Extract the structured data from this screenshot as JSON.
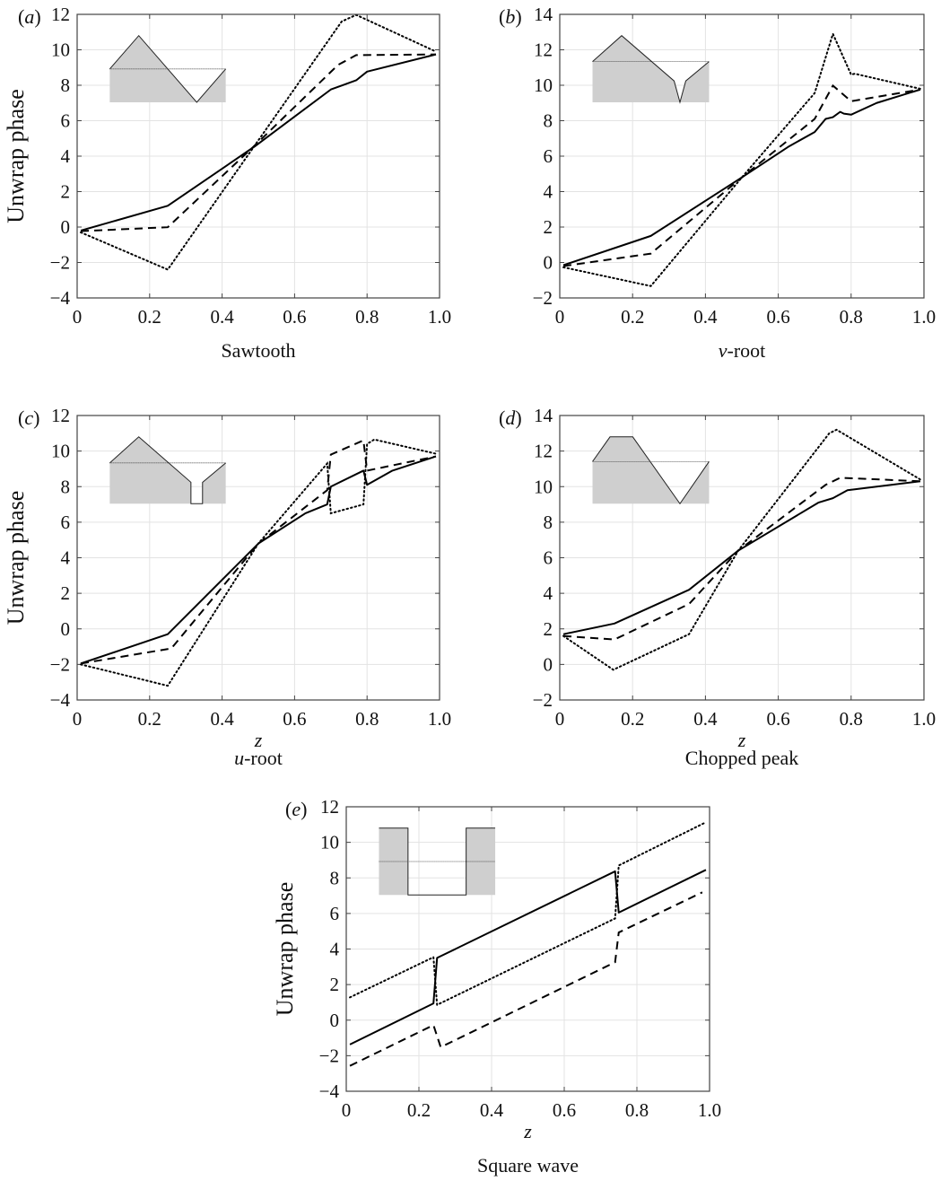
{
  "chart_data": [
    {
      "type": "line",
      "panel_label": "a",
      "caption": "Sawtooth",
      "xlabel": "",
      "ylabel": "Unwrap phase",
      "xlim": [
        0,
        1.0
      ],
      "ylim": [
        -4,
        12
      ],
      "xticks": [
        "0",
        "0.2",
        "0.4",
        "0.6",
        "0.8",
        "1.0"
      ],
      "yticks": [
        -4,
        -2,
        0,
        2,
        4,
        6,
        8,
        10,
        12
      ],
      "grid": true,
      "inset": "sawtooth",
      "series": [
        {
          "style": "solid",
          "x": [
            0.01,
            0.25,
            0.49,
            0.7,
            0.77,
            0.8,
            0.99
          ],
          "y": [
            -0.2,
            1.2,
            4.55,
            7.76,
            8.28,
            8.77,
            9.74
          ]
        },
        {
          "style": "dashed",
          "x": [
            0.01,
            0.25,
            0.49,
            0.72,
            0.77,
            0.99
          ],
          "y": [
            -0.23,
            -0.01,
            4.6,
            9.15,
            9.7,
            9.74
          ]
        },
        {
          "style": "dotted",
          "x": [
            0.01,
            0.25,
            0.49,
            0.73,
            0.77,
            0.99
          ],
          "y": [
            -0.3,
            -2.4,
            4.6,
            11.6,
            11.97,
            9.9
          ]
        }
      ]
    },
    {
      "type": "line",
      "panel_label": "b",
      "caption": "v-root",
      "xlabel": "",
      "ylabel": "",
      "xlim": [
        0,
        1.0
      ],
      "ylim": [
        -2,
        14
      ],
      "xticks": [
        "0",
        "0.2",
        "0.4",
        "0.6",
        "0.8",
        "1.0"
      ],
      "yticks": [
        -2,
        0,
        2,
        4,
        6,
        8,
        10,
        12,
        14
      ],
      "grid": true,
      "inset": "v-root",
      "series": [
        {
          "style": "solid",
          "x": [
            0.01,
            0.25,
            0.5,
            0.63,
            0.7,
            0.73,
            0.75,
            0.77,
            0.78,
            0.8,
            0.87,
            0.99
          ],
          "y": [
            -0.15,
            1.5,
            4.8,
            6.56,
            7.36,
            8.1,
            8.2,
            8.5,
            8.4,
            8.34,
            9.0,
            9.76
          ]
        },
        {
          "style": "dashed",
          "x": [
            0.01,
            0.25,
            0.5,
            0.7,
            0.75,
            0.8,
            0.99
          ],
          "y": [
            -0.2,
            0.5,
            4.8,
            8.1,
            9.98,
            9.1,
            9.76
          ]
        },
        {
          "style": "dotted",
          "x": [
            0.01,
            0.25,
            0.5,
            0.7,
            0.75,
            0.8,
            0.81,
            0.99
          ],
          "y": [
            -0.27,
            -1.33,
            4.8,
            9.56,
            12.9,
            10.6,
            10.65,
            9.8
          ]
        }
      ]
    },
    {
      "type": "line",
      "panel_label": "c",
      "caption": "u-root",
      "xlabel": "z",
      "ylabel": "Unwrap phase",
      "xlim": [
        0,
        1.0
      ],
      "ylim": [
        -4,
        12
      ],
      "xticks": [
        "0",
        "0.2",
        "0.4",
        "0.6",
        "0.8",
        "1.0"
      ],
      "yticks": [
        -4,
        -2,
        0,
        2,
        4,
        6,
        8,
        10,
        12
      ],
      "grid": true,
      "inset": "u-root",
      "series": [
        {
          "style": "solid",
          "x": [
            0.01,
            0.25,
            0.5,
            0.63,
            0.69,
            0.7,
            0.79,
            0.8,
            0.87,
            0.99
          ],
          "y": [
            -1.95,
            -0.3,
            4.8,
            6.5,
            7.0,
            8.0,
            8.9,
            8.1,
            8.9,
            9.7
          ]
        },
        {
          "style": "dashed",
          "x": [
            0.01,
            0.26,
            0.5,
            0.69,
            0.7,
            0.79,
            0.8,
            0.99
          ],
          "y": [
            -1.95,
            -1.1,
            4.8,
            7.8,
            9.8,
            10.6,
            8.9,
            9.7
          ]
        },
        {
          "style": "dotted",
          "x": [
            0.01,
            0.25,
            0.5,
            0.69,
            0.7,
            0.79,
            0.8,
            0.82,
            0.99
          ],
          "y": [
            -2.0,
            -3.2,
            4.8,
            9.3,
            6.5,
            7.0,
            10.4,
            10.65,
            9.85
          ]
        }
      ]
    },
    {
      "type": "line",
      "panel_label": "d",
      "caption": "Chopped peak",
      "xlabel": "z",
      "ylabel": "",
      "xlim": [
        0,
        1.0
      ],
      "ylim": [
        -2,
        14
      ],
      "xticks": [
        "0",
        "0.2",
        "0.4",
        "0.6",
        "0.8",
        "1.0"
      ],
      "yticks": [
        -2,
        0,
        2,
        4,
        6,
        8,
        10,
        12,
        14
      ],
      "grid": true,
      "inset": "chopped-peak",
      "series": [
        {
          "style": "solid",
          "x": [
            0.01,
            0.15,
            0.355,
            0.49,
            0.71,
            0.75,
            0.79,
            0.99
          ],
          "y": [
            1.7,
            2.3,
            4.2,
            6.4,
            9.1,
            9.35,
            9.8,
            10.3
          ]
        },
        {
          "style": "dashed",
          "x": [
            0.01,
            0.15,
            0.355,
            0.49,
            0.73,
            0.77,
            0.99
          ],
          "y": [
            1.6,
            1.4,
            3.4,
            6.4,
            10.1,
            10.5,
            10.3
          ]
        },
        {
          "style": "dotted",
          "x": [
            0.01,
            0.147,
            0.355,
            0.49,
            0.74,
            0.76,
            0.99
          ],
          "y": [
            1.6,
            -0.3,
            1.7,
            6.4,
            13.0,
            13.2,
            10.4
          ]
        }
      ]
    },
    {
      "type": "line",
      "panel_label": "e",
      "caption": "Square wave",
      "xlabel": "z",
      "ylabel": "Unwrap phase",
      "xlim": [
        0,
        1.0
      ],
      "ylim": [
        -4,
        12
      ],
      "xticks": [
        "0",
        "0.2",
        "0.4",
        "0.6",
        "0.8",
        "1.0"
      ],
      "yticks": [
        -4,
        -2,
        0,
        2,
        4,
        6,
        8,
        10,
        12
      ],
      "grid": true,
      "inset": "square-wave",
      "series": [
        {
          "style": "solid",
          "x": [
            0.01,
            0.24,
            0.25,
            0.74,
            0.75,
            0.99
          ],
          "y": [
            -1.37,
            0.94,
            3.5,
            8.37,
            6.05,
            8.45
          ]
        },
        {
          "style": "dashed",
          "x": [
            0.01,
            0.24,
            0.26,
            0.74,
            0.75,
            0.98
          ],
          "y": [
            -2.57,
            -0.28,
            -1.52,
            3.26,
            4.93,
            7.19
          ]
        },
        {
          "style": "dotted",
          "x": [
            0.01,
            0.24,
            0.25,
            0.74,
            0.75,
            0.99
          ],
          "y": [
            1.28,
            3.54,
            0.86,
            5.72,
            8.7,
            11.13
          ]
        }
      ]
    }
  ]
}
